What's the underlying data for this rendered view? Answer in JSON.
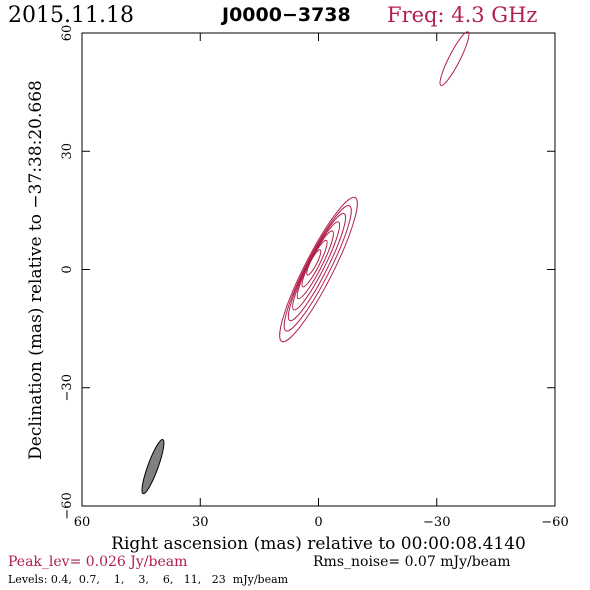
{
  "header": {
    "date": "2015.11.18",
    "source": "J0000−3738",
    "freq": "Freq: 4.3 GHz"
  },
  "chart_data": {
    "type": "contour",
    "xlabel": "Right ascension (mas) relative to 00:00:08.4140",
    "ylabel": "Declination (mas) relative to −37:38:20.668",
    "xlim": [
      60,
      -60
    ],
    "ylim": [
      -60,
      60
    ],
    "x_ticks": [
      60,
      30,
      0,
      -30,
      -60
    ],
    "y_ticks": [
      -60,
      -30,
      0,
      30,
      60
    ],
    "x_tick_labels": [
      "60",
      "30",
      "0",
      "−30",
      "−60"
    ],
    "y_tick_labels": [
      "−60",
      "−30",
      "0",
      "30",
      "60"
    ],
    "contours": [
      {
        "cx": 0.0,
        "cy": 0.0,
        "a": 20.5,
        "b": 3.6,
        "angle": 63
      },
      {
        "cx": 0.2,
        "cy": 0.3,
        "a": 17.8,
        "b": 3.0,
        "angle": 63
      },
      {
        "cx": 0.4,
        "cy": 0.6,
        "a": 15.2,
        "b": 2.5,
        "angle": 63
      },
      {
        "cx": 0.6,
        "cy": 0.9,
        "a": 12.5,
        "b": 2.0,
        "angle": 63
      },
      {
        "cx": 0.8,
        "cy": 1.2,
        "a": 9.6,
        "b": 1.6,
        "angle": 63
      },
      {
        "cx": 1.0,
        "cy": 1.5,
        "a": 6.6,
        "b": 1.2,
        "angle": 63
      },
      {
        "cx": 1.2,
        "cy": 1.8,
        "a": 3.6,
        "b": 0.8,
        "angle": 63
      },
      {
        "cx": -34.5,
        "cy": 53.5,
        "a": 7.6,
        "b": 1.4,
        "angle": 63
      }
    ],
    "beam": {
      "cx": 42.0,
      "cy": -50.0,
      "a": 7.3,
      "b": 1.3,
      "angle": 70
    },
    "peak_level": "Peak_lev=  0.026 Jy/beam",
    "rms_noise": "Rms_noise= 0.07 mJy/beam",
    "levels": "Levels: 0.4,  0.7,    1,    3,    6,   11,   23  mJy/beam",
    "contour_color": "#b0204a",
    "beam_color": "#808080"
  }
}
